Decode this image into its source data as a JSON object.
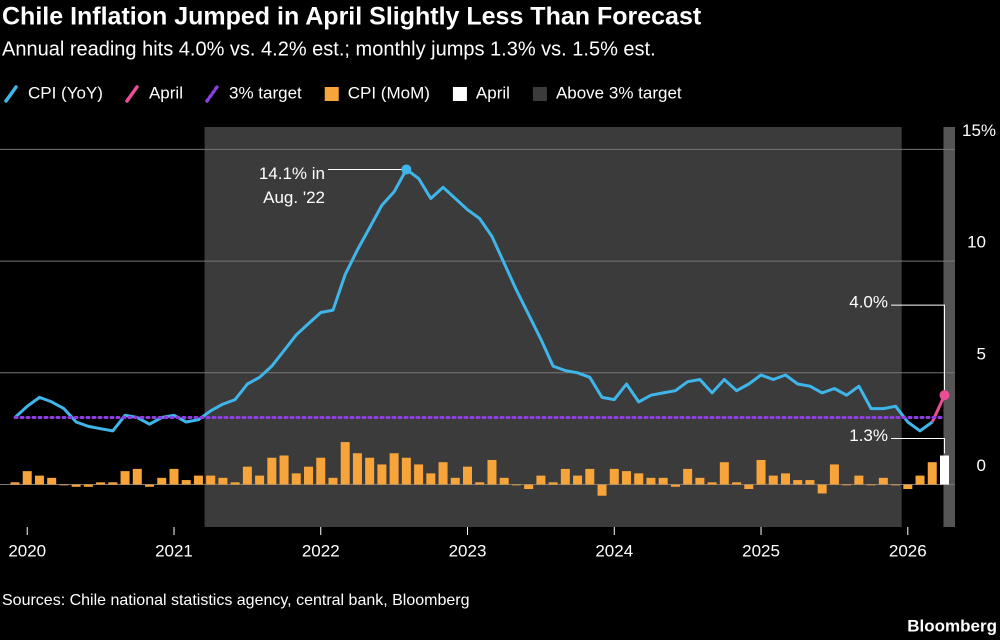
{
  "chart_data": {
    "type": "combo",
    "title": "Chile Inflation Jumped in April Slightly Less Than Forecast",
    "subtitle": "Annual reading hits 4.0% vs. 4.2% est.; monthly jumps 1.3% vs. 1.5% est.",
    "source": "Sources: Chile national statistics agency, central bank, Bloomberg",
    "brand": "Bloomberg",
    "annotation": [
      "14.1% in",
      "Aug. '22"
    ],
    "categories": [
      null,
      "2020",
      null,
      null,
      null,
      null,
      null,
      null,
      null,
      null,
      null,
      null,
      null,
      "2021",
      null,
      null,
      null,
      null,
      null,
      null,
      null,
      null,
      null,
      null,
      null,
      "2022",
      null,
      null,
      null,
      null,
      null,
      null,
      null,
      null,
      null,
      null,
      null,
      "2023",
      null,
      null,
      null,
      null,
      null,
      null,
      null,
      null,
      null,
      null,
      null,
      "2024",
      null,
      null,
      null,
      null,
      null,
      null,
      null,
      null,
      null,
      null,
      null,
      "2025",
      null,
      null,
      null,
      null,
      null,
      null,
      null,
      null,
      null,
      null,
      null,
      "2026",
      null,
      null,
      null
    ],
    "ylim": [
      -1.9,
      16
    ],
    "yticks": [
      0,
      5,
      10,
      {
        "value": 15,
        "label": "15%"
      }
    ],
    "grid": true,
    "series": [
      {
        "name": "CPI (YoY)",
        "type": "line",
        "color": "#3fb6ea",
        "values": [
          3.0,
          3.5,
          3.9,
          3.7,
          3.4,
          2.8,
          2.6,
          2.5,
          2.4,
          3.1,
          3.0,
          2.7,
          3.0,
          3.1,
          2.8,
          2.9,
          3.3,
          3.6,
          3.8,
          4.5,
          4.8,
          5.3,
          6.0,
          6.7,
          7.2,
          7.7,
          7.8,
          9.4,
          10.5,
          11.5,
          12.5,
          13.1,
          14.1,
          13.7,
          12.8,
          13.3,
          12.8,
          12.3,
          11.9,
          11.1,
          9.9,
          8.7,
          7.6,
          6.5,
          5.3,
          5.1,
          5.0,
          4.8,
          3.9,
          3.8,
          4.5,
          3.7,
          4.0,
          4.1,
          4.2,
          4.6,
          4.7,
          4.1,
          4.7,
          4.2,
          4.5,
          4.9,
          4.7,
          4.9,
          4.5,
          4.4,
          4.1,
          4.3,
          4.0,
          4.4,
          3.4,
          3.4,
          3.5,
          2.8,
          2.4,
          2.8,
          null
        ]
      },
      {
        "name": "April",
        "type": "line",
        "color": "#ec4d96",
        "values": [
          null,
          null,
          null,
          null,
          null,
          null,
          null,
          null,
          null,
          null,
          null,
          null,
          null,
          null,
          null,
          null,
          null,
          null,
          null,
          null,
          null,
          null,
          null,
          null,
          null,
          null,
          null,
          null,
          null,
          null,
          null,
          null,
          null,
          null,
          null,
          null,
          null,
          null,
          null,
          null,
          null,
          null,
          null,
          null,
          null,
          null,
          null,
          null,
          null,
          null,
          null,
          null,
          null,
          null,
          null,
          null,
          null,
          null,
          null,
          null,
          null,
          null,
          null,
          null,
          null,
          null,
          null,
          null,
          null,
          null,
          null,
          null,
          null,
          null,
          null,
          2.8,
          4.0
        ],
        "value_labels": [
          null,
          null,
          null,
          null,
          null,
          null,
          null,
          null,
          null,
          null,
          null,
          null,
          null,
          null,
          null,
          null,
          null,
          null,
          null,
          null,
          null,
          null,
          null,
          null,
          null,
          null,
          null,
          null,
          null,
          null,
          null,
          null,
          null,
          null,
          null,
          null,
          null,
          null,
          null,
          null,
          null,
          null,
          null,
          null,
          null,
          null,
          null,
          null,
          null,
          null,
          null,
          null,
          null,
          null,
          null,
          null,
          null,
          null,
          null,
          null,
          null,
          null,
          null,
          null,
          null,
          null,
          null,
          null,
          null,
          null,
          null,
          null,
          null,
          null,
          null,
          null,
          "4.0%"
        ]
      },
      {
        "name": "3% target",
        "type": "target",
        "color": "#8d3fe0",
        "value": 3
      },
      {
        "name": "CPI (MoM)",
        "type": "bar",
        "color": "#f7a43a",
        "values": [
          0.1,
          0.6,
          0.4,
          0.3,
          0,
          -0.1,
          -0.1,
          0.1,
          0.1,
          0.6,
          0.7,
          -0.1,
          0.3,
          0.7,
          0.2,
          0.4,
          0.4,
          0.3,
          0.1,
          0.8,
          0.4,
          1.2,
          1.3,
          0.5,
          0.8,
          1.2,
          0.3,
          1.9,
          1.4,
          1.2,
          0.9,
          1.4,
          1.2,
          0.9,
          0.5,
          1.0,
          0.3,
          0.8,
          0.1,
          1.1,
          0.3,
          0,
          -0.2,
          0.4,
          0.1,
          0.7,
          0.4,
          0.7,
          -0.5,
          0.7,
          0.6,
          0.5,
          0.3,
          0.3,
          -0.1,
          0.7,
          0.3,
          0.1,
          1.0,
          0.1,
          -0.2,
          1.1,
          0.4,
          0.5,
          0.2,
          0.2,
          -0.4,
          0.9,
          0,
          0.4,
          0,
          0.3,
          0,
          -0.2,
          0.4,
          1.0,
          null
        ]
      },
      {
        "name": "April",
        "type": "bar",
        "color": "#ffffff",
        "values": [
          null,
          null,
          null,
          null,
          null,
          null,
          null,
          null,
          null,
          null,
          null,
          null,
          null,
          null,
          null,
          null,
          null,
          null,
          null,
          null,
          null,
          null,
          null,
          null,
          null,
          null,
          null,
          null,
          null,
          null,
          null,
          null,
          null,
          null,
          null,
          null,
          null,
          null,
          null,
          null,
          null,
          null,
          null,
          null,
          null,
          null,
          null,
          null,
          null,
          null,
          null,
          null,
          null,
          null,
          null,
          null,
          null,
          null,
          null,
          null,
          null,
          null,
          null,
          null,
          null,
          null,
          null,
          null,
          null,
          null,
          null,
          null,
          null,
          null,
          null,
          null,
          1.3
        ],
        "value_labels": [
          null,
          null,
          null,
          null,
          null,
          null,
          null,
          null,
          null,
          null,
          null,
          null,
          null,
          null,
          null,
          null,
          null,
          null,
          null,
          null,
          null,
          null,
          null,
          null,
          null,
          null,
          null,
          null,
          null,
          null,
          null,
          null,
          null,
          null,
          null,
          null,
          null,
          null,
          null,
          null,
          null,
          null,
          null,
          null,
          null,
          null,
          null,
          null,
          null,
          null,
          null,
          null,
          null,
          null,
          null,
          null,
          null,
          null,
          null,
          null,
          null,
          null,
          null,
          null,
          null,
          null,
          null,
          null,
          null,
          null,
          null,
          null,
          null,
          null,
          null,
          null,
          "1.3%"
        ]
      },
      {
        "name": "Above 3% target",
        "type": "span",
        "color": "#3b3b3b",
        "span": [
          16,
          72
        ]
      }
    ]
  }
}
